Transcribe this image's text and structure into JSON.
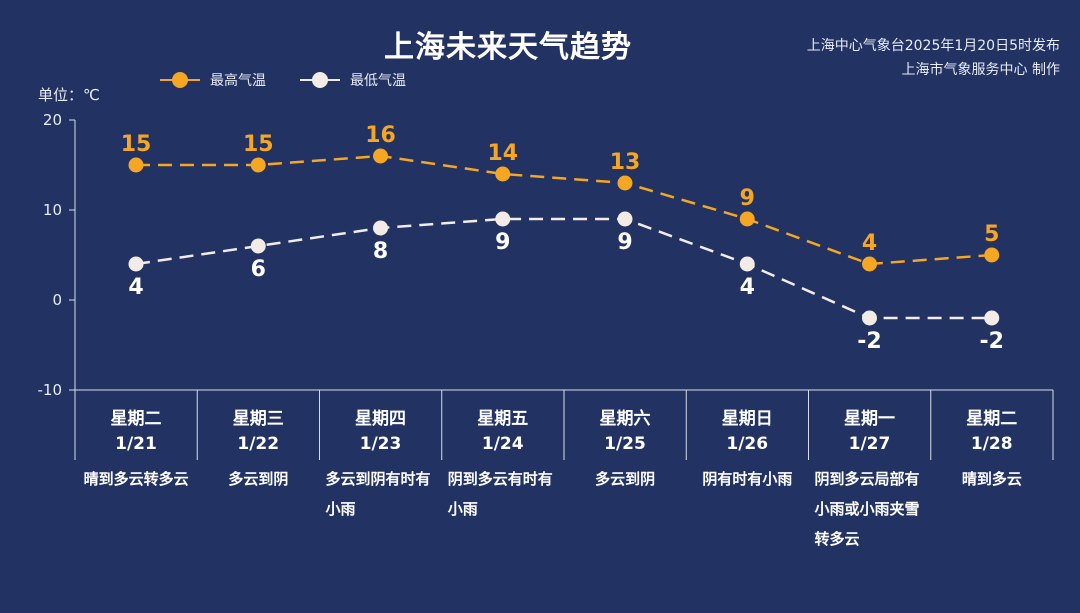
{
  "title": "上海未来天气趋势",
  "source": {
    "line1": "上海中心气象台2025年1月20日5时发布",
    "line2": "上海市气象服务中心 制作"
  },
  "unit_label": "单位：℃",
  "colors": {
    "high": "#f5a623",
    "low": "#f3ece6",
    "axis": "#d8dde8",
    "background": "#223263"
  },
  "chart_data": {
    "type": "line",
    "categories": [
      "1/21",
      "1/22",
      "1/23",
      "1/24",
      "1/25",
      "1/26",
      "1/27",
      "1/28"
    ],
    "weekdays": [
      "星期二",
      "星期三",
      "星期四",
      "星期五",
      "星期六",
      "星期日",
      "星期一",
      "星期二"
    ],
    "weather": [
      "晴到多云转多云",
      "多云到阴",
      "多云到阴有时有小雨",
      "阴到多云有时有小雨",
      "多云到阴",
      "阴有时有小雨",
      "阴到多云局部有小雨或小雨夹雪转多云",
      "晴到多云"
    ],
    "series": [
      {
        "name": "最高气温",
        "values": [
          15,
          15,
          16,
          14,
          13,
          9,
          4,
          5
        ]
      },
      {
        "name": "最低气温",
        "values": [
          4,
          6,
          8,
          9,
          9,
          4,
          -2,
          -2
        ]
      }
    ],
    "ylim": [
      -10,
      20
    ],
    "yticks": [
      20,
      10,
      0,
      -10
    ],
    "ylabel": "单位：℃",
    "legend": "top-left"
  }
}
